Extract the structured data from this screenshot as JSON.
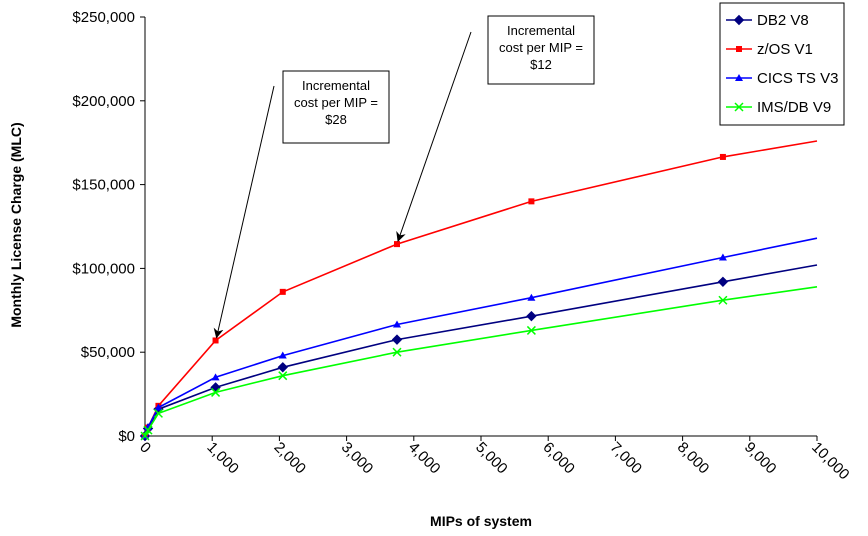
{
  "chart_data": {
    "type": "line",
    "title": "",
    "xlabel": "MIPs of system",
    "ylabel": "Monthly License Charge (MLC)",
    "xlim": [
      0,
      10000
    ],
    "ylim": [
      0,
      250000
    ],
    "x_ticks": [
      "0",
      "1,000",
      "2,000",
      "3,000",
      "4,000",
      "5,000",
      "6,000",
      "7,000",
      "8,000",
      "9,000",
      "10,000"
    ],
    "y_ticks": [
      "$0",
      "$50,000",
      "$100,000",
      "$150,000",
      "$200,000",
      "$250,000"
    ],
    "grid": false,
    "legend_position": "top-right",
    "series": [
      {
        "name": "DB2 V8",
        "color": "#000080",
        "marker": "diamond",
        "x": [
          0,
          45,
          200,
          1050,
          2050,
          3750,
          5750,
          8600,
          10000
        ],
        "y": [
          0,
          4500,
          16000,
          29000,
          41000,
          57500,
          71500,
          92000,
          102000
        ]
      },
      {
        "name": "z/OS V1",
        "color": "#FF0000",
        "marker": "square",
        "x": [
          0,
          45,
          200,
          1050,
          2050,
          3750,
          5750,
          8600,
          10000
        ],
        "y": [
          0,
          5000,
          18000,
          57000,
          86000,
          114500,
          140000,
          166500,
          176000
        ]
      },
      {
        "name": "CICS TS V3",
        "color": "#0000FF",
        "marker": "triangle",
        "x": [
          0,
          45,
          200,
          1050,
          2050,
          3750,
          5750,
          8600,
          10000
        ],
        "y": [
          0,
          5200,
          17000,
          35000,
          48000,
          66500,
          82500,
          106500,
          118000
        ]
      },
      {
        "name": "IMS/DB V9",
        "color": "#00FF00",
        "marker": "x",
        "x": [
          0,
          45,
          200,
          1050,
          2050,
          3750,
          5750,
          8600,
          10000
        ],
        "y": [
          0,
          3500,
          13500,
          26000,
          36000,
          50000,
          63000,
          81000,
          89000
        ]
      }
    ],
    "annotations": [
      {
        "lines": [
          "Incremental",
          "cost per MIP =",
          "$28"
        ],
        "arrow_to": {
          "x": 1050,
          "y": 57000
        }
      },
      {
        "lines": [
          "Incremental",
          "cost per MIP =",
          "$12"
        ],
        "arrow_to": {
          "x": 3750,
          "y": 114500
        }
      }
    ]
  }
}
